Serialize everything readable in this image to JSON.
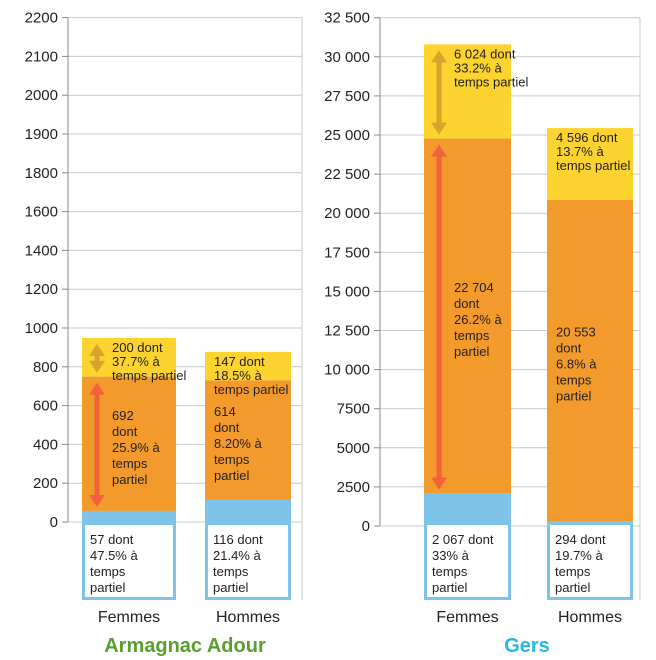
{
  "chart_data": [
    {
      "type": "bar",
      "stacked": true,
      "title": "Armagnac Adour",
      "title_color": "#5a9e2f",
      "categories": [
        "Femmes",
        "Hommes"
      ],
      "yticks": [
        "0",
        "200",
        "400",
        "600",
        "800",
        "1000",
        "1200",
        "1400",
        "1600",
        "1800",
        "1900",
        "2000",
        "2100",
        "2200"
      ],
      "grid": true,
      "series": [
        {
          "key": "blue",
          "color": "#7ec3e8",
          "values": [
            57,
            116
          ],
          "labels": [
            "57 dont\n47.5% à\ntemps\npartiel",
            "116 dont\n21.4% à\ntemps\npartiel"
          ]
        },
        {
          "key": "orange",
          "color": "#f39a2d",
          "values": [
            692,
            614
          ],
          "labels": [
            "692\ndont\n25.9% à\ntemps\npartiel",
            "614\ndont\n8.20% à\ntemps\npartiel"
          ]
        },
        {
          "key": "yellow",
          "color": "#fdd330",
          "values": [
            200,
            147
          ],
          "labels": [
            "200 dont\n37.7% à\ntemps partiel",
            "147 dont\n18.5% à\ntemps partiel"
          ]
        }
      ]
    },
    {
      "type": "bar",
      "stacked": true,
      "title": "Gers",
      "title_color": "#29b6e0",
      "categories": [
        "Femmes",
        "Hommes"
      ],
      "yticks": [
        "0",
        "2500",
        "5000",
        "7500",
        "10 000",
        "12 500",
        "15 000",
        "17 500",
        "20 000",
        "22 500",
        "25 000",
        "27 500",
        "30 000",
        "32 500"
      ],
      "grid": true,
      "series": [
        {
          "key": "blue",
          "color": "#7ec3e8",
          "values": [
            2067,
            294
          ],
          "labels": [
            "2 067 dont\n33% à\ntemps\npartiel",
            "294 dont\n19.7% à\ntemps\npartiel"
          ]
        },
        {
          "key": "orange",
          "color": "#f39a2d",
          "values": [
            22704,
            20553
          ],
          "labels": [
            "22 704\ndont\n26.2% à\ntemps\npartiel",
            "20 553\ndont\n6.8% à\ntemps\npartiel"
          ]
        },
        {
          "key": "yellow",
          "color": "#fdd330",
          "values": [
            6024,
            4596
          ],
          "labels": [
            "6 024 dont\n33.2% à\ntemps partiel",
            "4 596 dont\n13.7% à\ntemps partiel"
          ]
        }
      ]
    }
  ]
}
